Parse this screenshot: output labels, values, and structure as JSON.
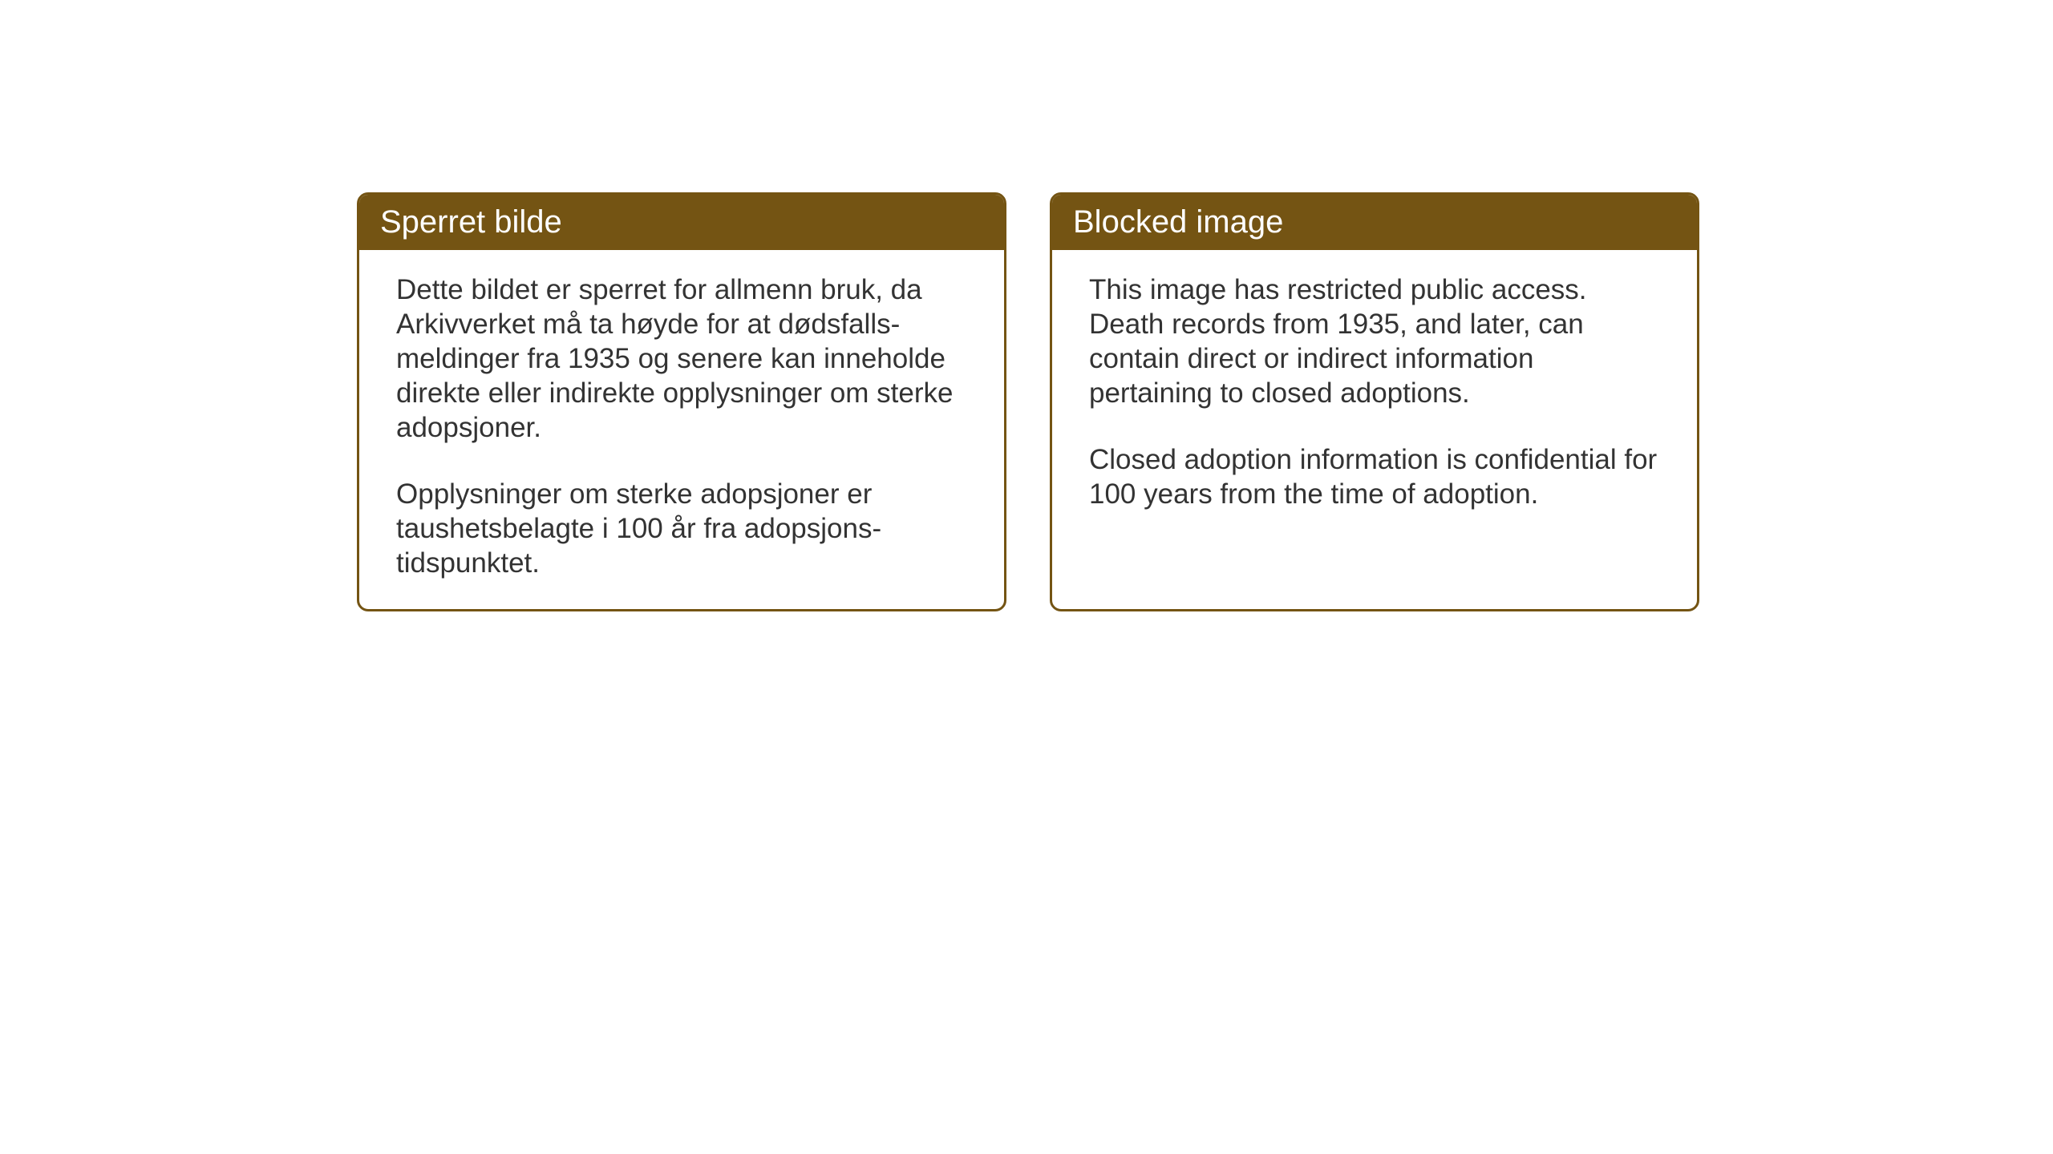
{
  "panels": {
    "norwegian": {
      "title": "Sperret bilde",
      "paragraph1": "Dette bildet er sperret for allmenn bruk, da Arkivverket må ta høyde for at dødsfalls-meldinger fra 1935 og senere kan inneholde direkte eller indirekte opplysninger om sterke adopsjoner.",
      "paragraph2": "Opplysninger om sterke adopsjoner er taushetsbelagte i 100 år fra adopsjons-tidspunktet."
    },
    "english": {
      "title": "Blocked image",
      "paragraph1": "This image has restricted public access. Death records from 1935, and later, can contain direct or indirect information pertaining to closed adoptions.",
      "paragraph2": "Closed adoption information is confidential for 100 years from the time of adoption."
    }
  },
  "styling": {
    "header_bg_color": "#745413",
    "header_text_color": "#ffffff",
    "border_color": "#745413",
    "body_bg_color": "#ffffff",
    "body_text_color": "#333333",
    "page_bg_color": "#ffffff",
    "header_fontsize": 40,
    "body_fontsize": 35,
    "border_radius": 14,
    "border_width": 3
  }
}
